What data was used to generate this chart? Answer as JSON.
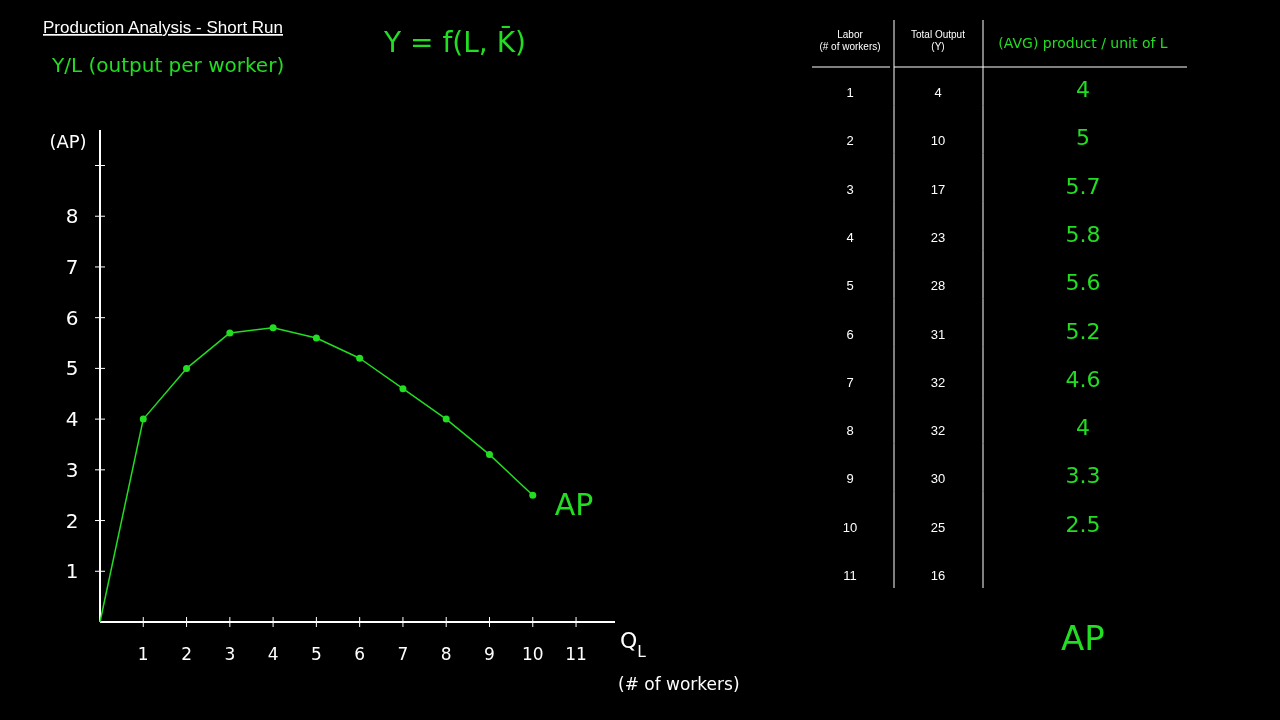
{
  "chart_data": [
    {
      "type": "line",
      "title": "Production Analysis - Short Run",
      "annotations": [
        "Y = f(L, K̄)",
        "Y/L (output per worker)"
      ],
      "ylabel": "(AP)",
      "xlabel": "Q$_{L}$ (# of workers)",
      "xlim": [
        0,
        11.9
      ],
      "xticks": [
        1,
        2,
        3,
        4,
        5,
        6,
        7,
        8,
        9,
        10,
        11
      ],
      "ylim": [
        0,
        9.7
      ],
      "yticks": [
        1,
        2,
        3,
        4,
        5,
        6,
        7,
        8,
        {
          "value": 9,
          "label": null
        }
      ],
      "grid": false,
      "series": [
        {
          "color": "#22dd22",
          "x": [
            0,
            1
          ],
          "values": [
            0,
            4
          ]
        },
        {
          "name": "AP",
          "color": "#22dd22",
          "x": [
            1,
            2,
            3,
            4,
            5,
            6,
            7,
            8,
            9,
            10
          ],
          "values": [
            4,
            5,
            5.7,
            5.8,
            5.6,
            5.2,
            4.6,
            4.0,
            3.3,
            2.5
          ],
          "marker": "circle"
        }
      ]
    },
    {
      "type": "heatmap",
      "ylabel": "Labor\n(# of workers)",
      "categories": [
        "Total Output\n(Y)",
        "(AVG) product / unit of L"
      ],
      "colors": [
        "#ffffff",
        "#22dd22"
      ],
      "y_categories": [
        "1",
        "2",
        "3",
        "4",
        "5",
        "6",
        "7",
        "8",
        "9",
        "10",
        "11"
      ],
      "annotations": [
        "AP"
      ],
      "data_labels": true,
      "cells": [
        [
          4,
          4
        ],
        [
          10,
          5
        ],
        [
          17,
          5.7
        ],
        [
          23,
          5.8
        ],
        [
          28,
          5.6
        ],
        [
          31,
          5.2
        ],
        [
          32,
          4.6
        ],
        [
          32,
          4.0
        ],
        [
          30,
          3.3
        ],
        [
          25,
          2.5
        ],
        [
          16,
          null
        ]
      ]
    }
  ]
}
